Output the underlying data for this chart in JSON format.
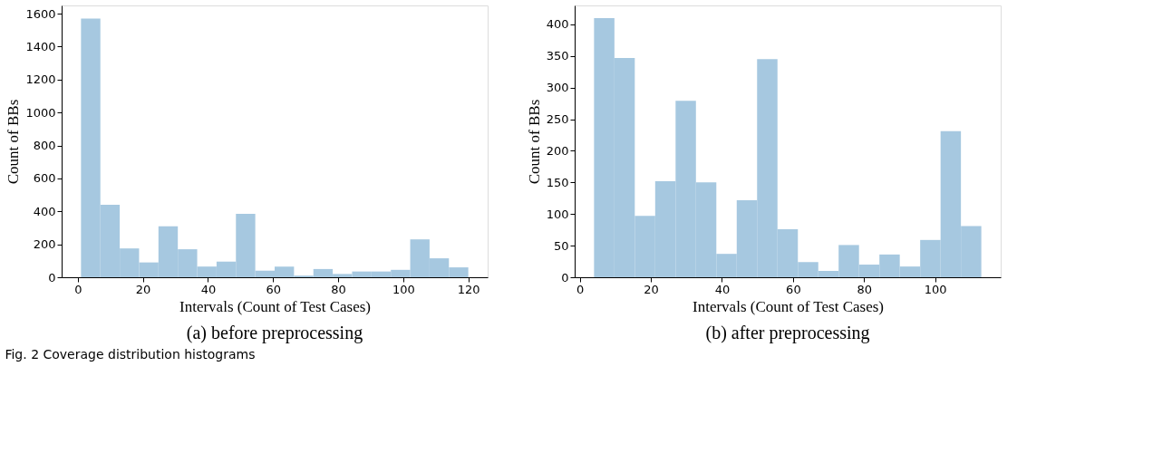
{
  "chart_data": [
    {
      "type": "histogram",
      "title": "(a) before preprocessing",
      "xlabel": "Intervals (Count of Test Cases)",
      "ylabel": "Count of BBs",
      "color": "#a6c8e0",
      "bins": [
        1,
        6.95,
        12.9,
        18.85,
        24.8,
        30.75,
        36.7,
        42.65,
        48.6,
        54.55,
        60.5,
        66.45,
        72.4,
        78.35,
        84.3,
        90.25,
        96.2,
        102.15,
        108.1,
        114.05,
        120
      ],
      "values": [
        1570,
        440,
        175,
        90,
        310,
        170,
        65,
        95,
        385,
        40,
        65,
        10,
        50,
        20,
        35,
        35,
        45,
        230,
        115,
        60
      ],
      "xlim": [
        -4.95,
        125.95
      ],
      "ylim": [
        0,
        1650
      ],
      "xticks": [
        0,
        20,
        40,
        60,
        80,
        100,
        120
      ],
      "yticks": [
        0,
        200,
        400,
        600,
        800,
        {
          "value": 1000,
          "label": "1000"
        },
        {
          "value": 1200,
          "label": "1200"
        },
        {
          "value": 1400,
          "label": "1400"
        },
        {
          "value": 1600,
          "label": "1600"
        }
      ],
      "grid": false,
      "annotations": [
        "Fig. 2 Coverage distribution histograms"
      ]
    },
    {
      "type": "histogram",
      "title": "(b) after preprocessing",
      "xlabel": "Intervals (Count of Test Cases)",
      "ylabel": "Count of BBs",
      "color": "#a6c8e0",
      "bins": [
        4,
        9.74,
        15.47,
        21.21,
        26.95,
        32.68,
        38.42,
        44.16,
        49.89,
        55.63,
        61.37,
        67.11,
        72.84,
        78.58,
        84.32,
        90.05,
        95.79,
        101.53,
        107.26,
        113
      ],
      "values": [
        410,
        347,
        97,
        152,
        279,
        150,
        37,
        122,
        345,
        76,
        24,
        10,
        51,
        20,
        36,
        17,
        59,
        231,
        81
      ],
      "xlim": [
        -1.45,
        118.45
      ],
      "ylim": [
        0,
        430
      ],
      "xticks": [
        0,
        20,
        40,
        60,
        80,
        100
      ],
      "yticks": [
        0,
        50,
        100,
        150,
        200,
        250,
        300,
        350,
        400
      ],
      "grid": false
    }
  ]
}
